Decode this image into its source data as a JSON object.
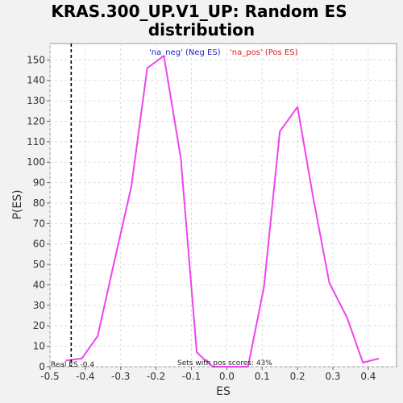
{
  "chart_data": {
    "type": "line",
    "title_line1": "KRAS.300_UP.V1_UP: Random ES",
    "title_line2": "distribution",
    "xlabel": "ES",
    "ylabel": "P(ES)",
    "xlim": [
      -0.5,
      0.48
    ],
    "ylim": [
      0,
      158
    ],
    "x_ticks": [
      -0.5,
      -0.4,
      -0.3,
      -0.2,
      -0.1,
      0.0,
      0.1,
      0.2,
      0.3,
      0.4
    ],
    "x_tick_labels": [
      "-0.5",
      "-0.4",
      "-0.3",
      "-0.2",
      "-0.1",
      "0.0",
      "0.1",
      "0.2",
      "0.3",
      "0.4"
    ],
    "y_ticks": [
      0,
      10,
      20,
      30,
      40,
      50,
      60,
      70,
      80,
      90,
      100,
      110,
      120,
      130,
      140,
      150
    ],
    "y_tick_labels": [
      "0",
      "10",
      "20",
      "30",
      "40",
      "50",
      "60",
      "70",
      "80",
      "90",
      "100",
      "110",
      "120",
      "130",
      "140",
      "150"
    ],
    "grid": true,
    "legend": {
      "placement": "top-center",
      "entries": [
        {
          "label": "'na_neg' (Neg ES)",
          "color": "#2222cc"
        },
        {
          "label": "'na_pos' (Pos ES)",
          "color": "#dd2222"
        }
      ]
    },
    "series": [
      {
        "color": "#ee44ee",
        "x": [
          -0.455,
          -0.41,
          -0.365,
          -0.32,
          -0.27,
          -0.225,
          -0.178,
          -0.13,
          -0.085,
          -0.04,
          0.0,
          0.06,
          0.105,
          0.15,
          0.2,
          0.245,
          0.29,
          0.34,
          0.385,
          0.43
        ],
        "y": [
          3,
          4,
          15,
          50,
          88,
          146,
          152,
          102,
          7,
          0,
          0,
          0,
          39,
          115,
          127,
          82,
          41,
          24,
          2,
          4
        ]
      }
    ],
    "real_es": {
      "x": -0.44,
      "label": "Real ES -0.4"
    },
    "annotation": "Sets with pos scores: 43%"
  }
}
